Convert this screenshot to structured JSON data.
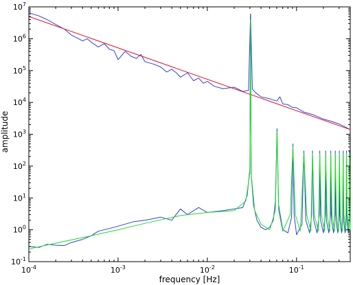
{
  "chart_data": {
    "type": "line",
    "title": "",
    "xlabel": "frequency [Hz]",
    "ylabel": "amplitude",
    "xscale": "log",
    "yscale": "log",
    "xlim": [
      0.0001,
      0.4
    ],
    "ylim": [
      0.1,
      10000000
    ],
    "grid": false,
    "legend": "none",
    "x_ticks": [
      {
        "value": 0.0001,
        "base": "10",
        "exp": "-4"
      },
      {
        "value": 0.001,
        "base": "10",
        "exp": "-3"
      },
      {
        "value": 0.01,
        "base": "10",
        "exp": "-2"
      },
      {
        "value": 0.1,
        "base": "10",
        "exp": "-1"
      }
    ],
    "y_ticks": [
      {
        "value": 0.1,
        "base": "10",
        "exp": "-1"
      },
      {
        "value": 1,
        "base": "10",
        "exp": "0"
      },
      {
        "value": 10,
        "base": "10",
        "exp": "1"
      },
      {
        "value": 100,
        "base": "10",
        "exp": "2"
      },
      {
        "value": 1000,
        "base": "10",
        "exp": "3"
      },
      {
        "value": 10000,
        "base": "10",
        "exp": "4"
      },
      {
        "value": 100000,
        "base": "10",
        "exp": "5"
      },
      {
        "value": 1000000,
        "base": "10",
        "exp": "6"
      },
      {
        "value": 10000000,
        "base": "10",
        "exp": "7"
      }
    ],
    "series": [
      {
        "color": "#2b3fe0",
        "x": [
          0.0001,
          0.00013,
          0.00016,
          0.0002,
          0.00025,
          0.0003,
          0.00035,
          0.0004,
          0.00045,
          0.0005,
          0.0006,
          0.0007,
          0.0008,
          0.0009,
          0.001,
          0.0012,
          0.0014,
          0.0016,
          0.0018,
          0.002,
          0.0025,
          0.003,
          0.0035,
          0.004,
          0.0045,
          0.005,
          0.006,
          0.007,
          0.008,
          0.009,
          0.01,
          0.012,
          0.015,
          0.02,
          0.025,
          0.029,
          0.0305,
          0.032,
          0.035,
          0.04,
          0.05,
          0.06,
          0.065,
          0.07,
          0.08,
          0.09,
          0.1,
          0.12,
          0.15,
          0.2,
          0.25,
          0.3,
          0.35,
          0.4
        ],
        "y": [
          6500000,
          5200000,
          4000000,
          2800000,
          2000000,
          1300000,
          1050000,
          850000,
          1000000,
          780000,
          550000,
          700000,
          470000,
          420000,
          220000,
          400000,
          280000,
          240000,
          320000,
          190000,
          160000,
          130000,
          90000,
          110000,
          85000,
          62000,
          85000,
          48000,
          58000,
          40000,
          46000,
          32000,
          27000,
          30000,
          22000,
          24000,
          6000000,
          26000,
          20000,
          15000,
          13000,
          11000,
          15000,
          9000,
          8500,
          7000,
          6800,
          5000,
          4200,
          3000,
          2500,
          2100,
          1700,
          1400
        ]
      },
      {
        "color": "#e01020",
        "x": [
          0.0001,
          0.4
        ],
        "y": [
          5000000,
          1400
        ]
      },
      {
        "color": "#2b3fe0",
        "x": [
          0.0001,
          0.00013,
          0.00016,
          0.0002,
          0.00025,
          0.0003,
          0.0004,
          0.0005,
          0.0006,
          0.0008,
          0.001,
          0.0015,
          0.002,
          0.003,
          0.004,
          0.005,
          0.006,
          0.008,
          0.01,
          0.015,
          0.02,
          0.025,
          0.028,
          0.03,
          0.0305,
          0.031,
          0.033,
          0.036,
          0.04,
          0.045,
          0.05,
          0.055,
          0.058,
          0.0605,
          0.063,
          0.07,
          0.08,
          0.088,
          0.091,
          0.094,
          0.1,
          0.115,
          0.121,
          0.127,
          0.14,
          0.148,
          0.151,
          0.156,
          0.17,
          0.18,
          0.182,
          0.186,
          0.2,
          0.21,
          0.212,
          0.216,
          0.23,
          0.24,
          0.242,
          0.246,
          0.26,
          0.27,
          0.272,
          0.276,
          0.29,
          0.3,
          0.302,
          0.306,
          0.32,
          0.33,
          0.333,
          0.337,
          0.35,
          0.36,
          0.363,
          0.367,
          0.38,
          0.39,
          0.393,
          0.397,
          0.4
        ],
        "y": [
          0.3,
          0.28,
          0.35,
          0.33,
          0.32,
          0.4,
          0.5,
          0.65,
          0.9,
          1.1,
          1.3,
          1.8,
          2.0,
          2.5,
          2.0,
          4.5,
          3.0,
          5.0,
          3.5,
          4.0,
          4.5,
          5.0,
          12,
          80,
          6000000,
          60,
          6.0,
          2.0,
          1.2,
          1.0,
          1.2,
          2.0,
          8,
          1500,
          6,
          1.0,
          0.8,
          2.5,
          500,
          3,
          0.7,
          1.5,
          300,
          2.0,
          0.8,
          3.0,
          300,
          2.0,
          0.8,
          3.0,
          300,
          2.0,
          0.8,
          3.0,
          300,
          2.0,
          0.8,
          3.0,
          300,
          2.0,
          0.8,
          3.0,
          300,
          2.0,
          0.8,
          3.0,
          300,
          2.0,
          0.8,
          3.0,
          300,
          2.0,
          0.8,
          3.0,
          300,
          2.0,
          0.8,
          3.0,
          300,
          2.0,
          1.2
        ]
      },
      {
        "color": "#22dd22",
        "x": [
          0.0001,
          0.0002,
          0.0005,
          0.001,
          0.002,
          0.005,
          0.01,
          0.02,
          0.027,
          0.03,
          0.0305,
          0.031,
          0.034,
          0.04,
          0.05,
          0.058,
          0.0605,
          0.063,
          0.07,
          0.085,
          0.091,
          0.097,
          0.11,
          0.121,
          0.13,
          0.145,
          0.151,
          0.158,
          0.176,
          0.182,
          0.19,
          0.206,
          0.212,
          0.22,
          0.236,
          0.242,
          0.25,
          0.266,
          0.272,
          0.28,
          0.296,
          0.302,
          0.31,
          0.327,
          0.333,
          0.34,
          0.357,
          0.363,
          0.37,
          0.387,
          0.393,
          0.4
        ],
        "y": [
          0.25,
          0.38,
          0.65,
          1.0,
          1.6,
          2.8,
          3.5,
          4.0,
          8,
          60,
          4000000,
          60,
          4,
          1.5,
          1.0,
          4,
          1200,
          4,
          0.9,
          3,
          400,
          3,
          0.9,
          250,
          3,
          0.9,
          250,
          3,
          0.9,
          250,
          3,
          0.9,
          250,
          3,
          0.9,
          250,
          3,
          0.9,
          250,
          3,
          0.9,
          250,
          3,
          0.9,
          250,
          3,
          0.9,
          250,
          3,
          0.9,
          250,
          1.0
        ]
      }
    ]
  }
}
